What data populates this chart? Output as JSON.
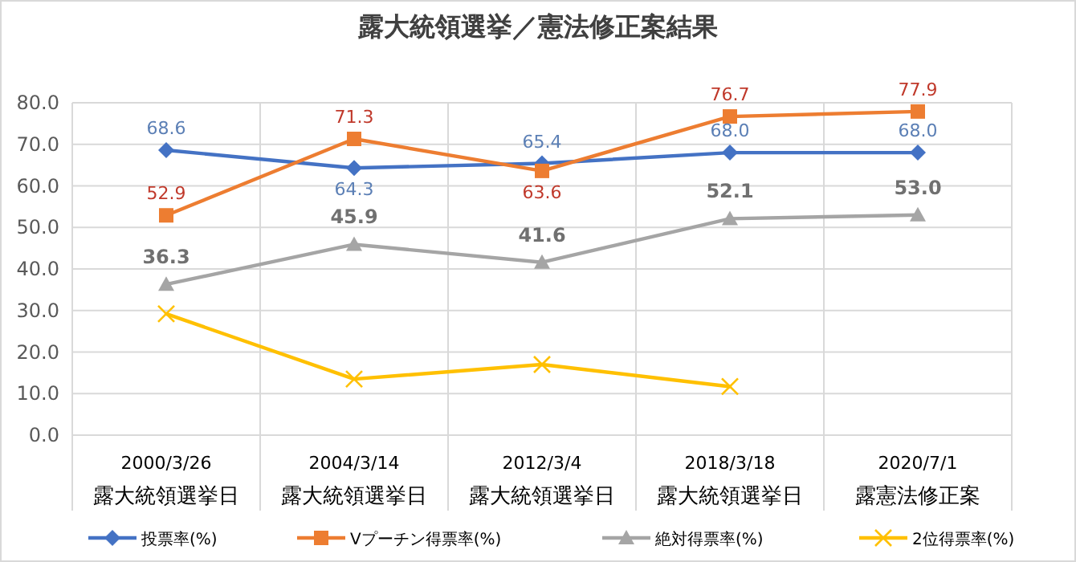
{
  "chart_data": {
    "type": "line",
    "title": "露大統領選挙／憲法修正案結果",
    "categories": [
      "2000/3/26\n露大統領選挙日",
      "2004/3/14\n露大統領選挙日",
      "2012/3/4\n露大統領選挙日",
      "2018/3/18\n露大統領選挙日",
      "2020/7/1\n露憲法修正案"
    ],
    "series": [
      {
        "name": "投票率(%)",
        "color": "#4472c4",
        "marker": "diamond",
        "values": [
          68.6,
          64.3,
          65.4,
          68.0,
          68.0
        ],
        "value_labels": [
          "68.6",
          "64.3",
          "65.4",
          "68.0",
          "68.0"
        ]
      },
      {
        "name": "Vプーチン得票率(%)",
        "color": "#ed7d31",
        "marker": "square",
        "values": [
          52.9,
          71.3,
          63.6,
          76.7,
          77.9
        ],
        "value_labels": [
          "52.9",
          "71.3",
          "63.6",
          "76.7",
          "77.9"
        ]
      },
      {
        "name": "絶対得票率(%)",
        "color": "#a5a5a5",
        "marker": "triangle",
        "values": [
          36.3,
          45.9,
          41.6,
          52.1,
          53.0
        ],
        "value_labels": [
          "36.3",
          "45.9",
          "41.6",
          "52.1",
          "53.0"
        ]
      },
      {
        "name": "2位得票率(%)",
        "color": "#ffc000",
        "marker": "cross",
        "values": [
          29.2,
          13.5,
          17.0,
          11.7,
          null
        ]
      }
    ],
    "ylim": [
      0,
      80
    ],
    "yticks": [
      {
        "value": 0,
        "label": "0.0"
      },
      {
        "value": 10,
        "label": "10.0"
      },
      {
        "value": 20,
        "label": "20.0"
      },
      {
        "value": 30,
        "label": "30.0"
      },
      {
        "value": 40,
        "label": "40.0"
      },
      {
        "value": 50,
        "label": "50.0"
      },
      {
        "value": 60,
        "label": "60.0"
      },
      {
        "value": 70,
        "label": "70.0"
      },
      {
        "value": 80,
        "label": "80.0"
      }
    ],
    "grid": true,
    "legend": "bottom"
  }
}
